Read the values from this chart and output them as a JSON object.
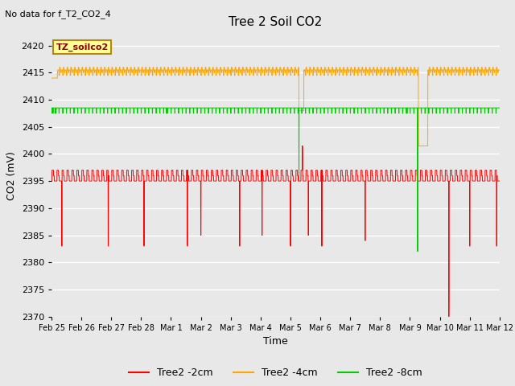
{
  "title": "Tree 2 Soil CO2",
  "no_data_text": "No data for f_T2_CO2_4",
  "xlabel": "Time",
  "ylabel": "CO2 (mV)",
  "ylim": [
    2370,
    2422
  ],
  "yticks": [
    2370,
    2375,
    2380,
    2385,
    2390,
    2395,
    2400,
    2405,
    2410,
    2415,
    2420
  ],
  "bg_color": "#e8e8e8",
  "legend_label": "TZ_soilco2",
  "colors": {
    "red": "#ff0000",
    "orange": "#ffa500",
    "green": "#00cc00"
  },
  "legend_entries": [
    {
      "label": "Tree2 -2cm",
      "color": "#ff0000"
    },
    {
      "label": "Tree2 -4cm",
      "color": "#ffa500"
    },
    {
      "label": "Tree2 -8cm",
      "color": "#00cc00"
    }
  ],
  "tick_labels": [
    "Feb 25",
    "Feb 26",
    "Feb 27",
    "Feb 28",
    "Mar 1",
    "Mar 2",
    "Mar 3",
    "Mar 4",
    "Mar 5",
    "Mar 6",
    "Mar 7",
    "Mar 8",
    "Mar 9",
    "Mar 10",
    "Mar 11",
    "Mar 12"
  ]
}
